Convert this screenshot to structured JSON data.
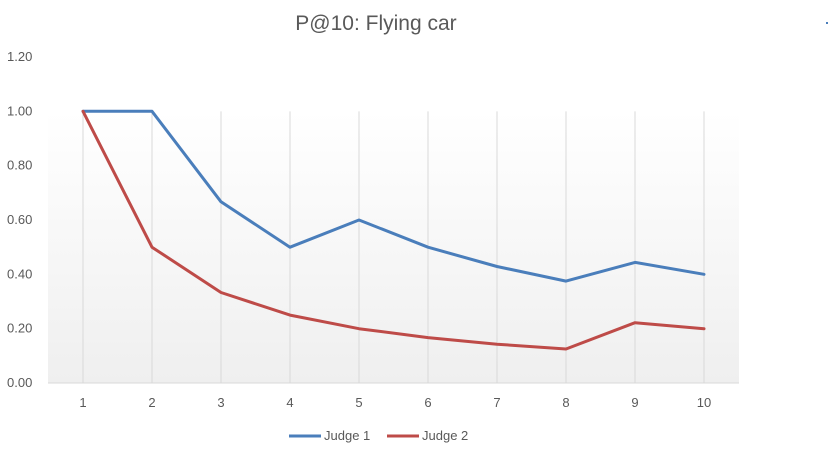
{
  "chart_data": {
    "type": "line",
    "title": "P@10: Flying car",
    "xlabel": "",
    "ylabel": "",
    "categories": [
      "1",
      "2",
      "3",
      "4",
      "5",
      "6",
      "7",
      "8",
      "9",
      "10"
    ],
    "ylim": [
      0,
      1.2
    ],
    "y_ticks": [
      "0.00",
      "0.20",
      "0.40",
      "0.60",
      "0.80",
      "1.00",
      "1.20"
    ],
    "grid": "vertical",
    "legend_position": "bottom",
    "series": [
      {
        "name": "Judge 1",
        "color": "#4a7ebb",
        "values": [
          1.0,
          1.0,
          0.667,
          0.5,
          0.6,
          0.5,
          0.429,
          0.375,
          0.444,
          0.4
        ]
      },
      {
        "name": "Judge 2",
        "color": "#be4b48",
        "values": [
          1.0,
          0.5,
          0.333,
          0.25,
          0.2,
          0.167,
          0.143,
          0.125,
          0.222,
          0.2
        ]
      }
    ]
  },
  "stray_mark_color": "#4a7ebb"
}
